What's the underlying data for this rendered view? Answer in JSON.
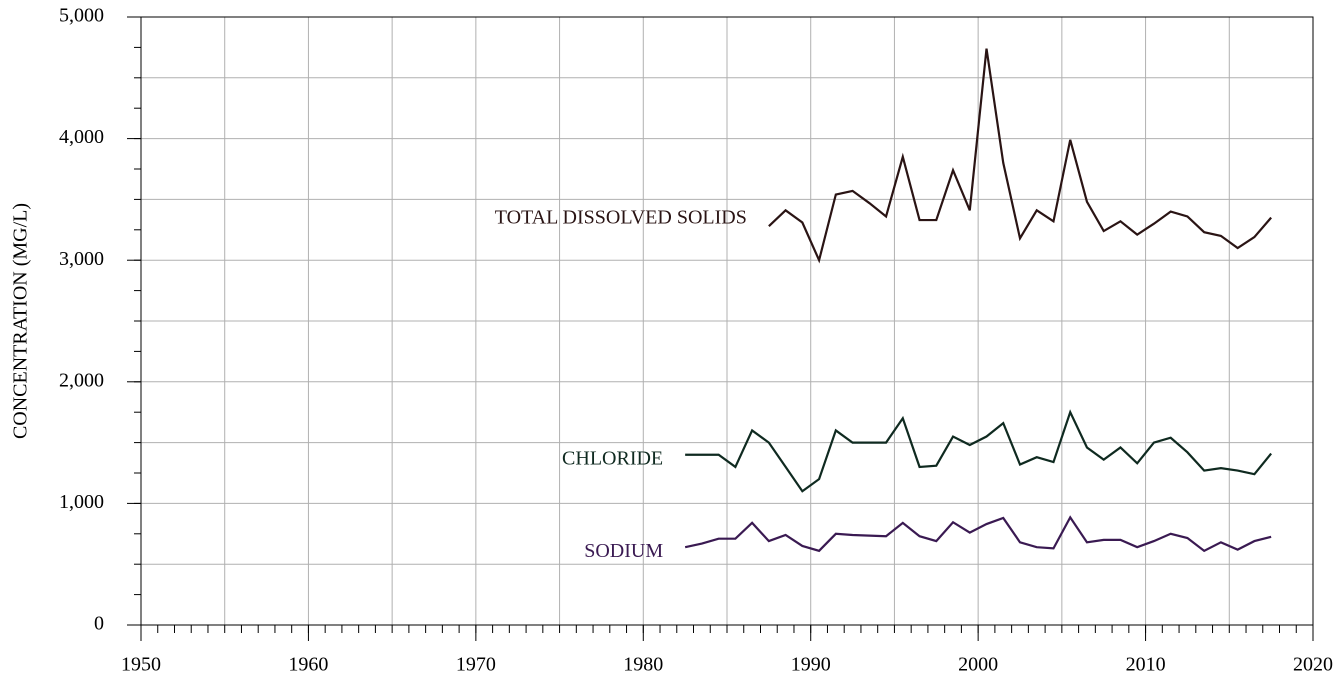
{
  "chart_data": {
    "type": "line",
    "y_label": "CONCENTRATION (MG/L)",
    "xlim": [
      1950,
      2020
    ],
    "xticks": [
      1950,
      1960,
      1970,
      1980,
      1990,
      2000,
      2010,
      2020
    ],
    "ylim": [
      0,
      5000
    ],
    "yticks": [
      0,
      {
        "value": 1000,
        "label": "1,000"
      },
      {
        "value": 2000,
        "label": "2,000"
      },
      {
        "value": 3000,
        "label": "3,000"
      },
      {
        "value": 4000,
        "label": "4,000"
      },
      {
        "value": 5000,
        "label": "5,000"
      }
    ],
    "grid": true,
    "xgrid_step": 5,
    "ygrid_step": 500,
    "xminor_step": 1,
    "yminor_step": 250,
    "series": [
      {
        "name": "TOTAL DISSOLVED SOLIDS",
        "color": "#2a1414",
        "x": [
          1987.5,
          1988.5,
          1989.5,
          1990.5,
          1991.5,
          1992.5,
          1993.5,
          1994.5,
          1995.5,
          1996.5,
          1997.5,
          1998.5,
          1999.5,
          2000.5,
          2001.5,
          2002.5,
          2003.5,
          2004.5,
          2005.5,
          2006.5,
          2007.5,
          2008.5,
          2009.5,
          2010.5,
          2011.5,
          2012.5,
          2013.5,
          2014.5,
          2015.5,
          2016.5,
          2017.5
        ],
        "values": [
          3280,
          3410,
          3310,
          3000,
          3540,
          3570,
          3470,
          3360,
          3850,
          3330,
          3330,
          3740,
          3410,
          4740,
          3800,
          3180,
          3410,
          3320,
          3990,
          3480,
          3240,
          3320,
          3210,
          3300,
          3400,
          3360,
          3230,
          3200,
          3100,
          3190,
          3350
        ]
      },
      {
        "name": "CHLORIDE",
        "color": "#0f2a20",
        "x": [
          1982.5,
          1983.5,
          1984.5,
          1985.5,
          1986.5,
          1987.5,
          1988.5,
          1989.5,
          1990.5,
          1991.5,
          1992.5,
          1993.5,
          1994.5,
          1995.5,
          1996.5,
          1997.5,
          1998.5,
          1999.5,
          2000.5,
          2001.5,
          2002.5,
          2003.5,
          2004.5,
          2005.5,
          2006.5,
          2007.5,
          2008.5,
          2009.5,
          2010.5,
          2011.5,
          2012.5,
          2013.5,
          2014.5,
          2015.5,
          2016.5,
          2017.5
        ],
        "values": [
          1400,
          1400,
          1400,
          1300,
          1600,
          1500,
          1300,
          1100,
          1200,
          1600,
          1500,
          1500,
          1500,
          1700,
          1300,
          1310,
          1550,
          1480,
          1550,
          1660,
          1320,
          1380,
          1340,
          1750,
          1460,
          1360,
          1460,
          1330,
          1500,
          1540,
          1420,
          1270,
          1290,
          1270,
          1240,
          1410
        ]
      },
      {
        "name": "SODIUM",
        "color": "#3a1a52",
        "x": [
          1982.5,
          1983.5,
          1984.5,
          1985.5,
          1986.5,
          1987.5,
          1988.5,
          1989.5,
          1990.5,
          1991.5,
          1992.5,
          1993.5,
          1994.5,
          1995.5,
          1996.5,
          1997.5,
          1998.5,
          1999.5,
          2000.5,
          2001.5,
          2002.5,
          2003.5,
          2004.5,
          2005.5,
          2006.5,
          2007.5,
          2008.5,
          2009.5,
          2010.5,
          2011.5,
          2012.5,
          2013.5,
          2014.5,
          2015.5,
          2016.5,
          2017.5
        ],
        "values": [
          640,
          670,
          710,
          710,
          840,
          690,
          740,
          650,
          610,
          750,
          740,
          735,
          730,
          840,
          730,
          690,
          845,
          760,
          830,
          880,
          680,
          640,
          630,
          885,
          680,
          700,
          700,
          640,
          690,
          750,
          715,
          610,
          680,
          620,
          690,
          725
        ]
      }
    ]
  }
}
